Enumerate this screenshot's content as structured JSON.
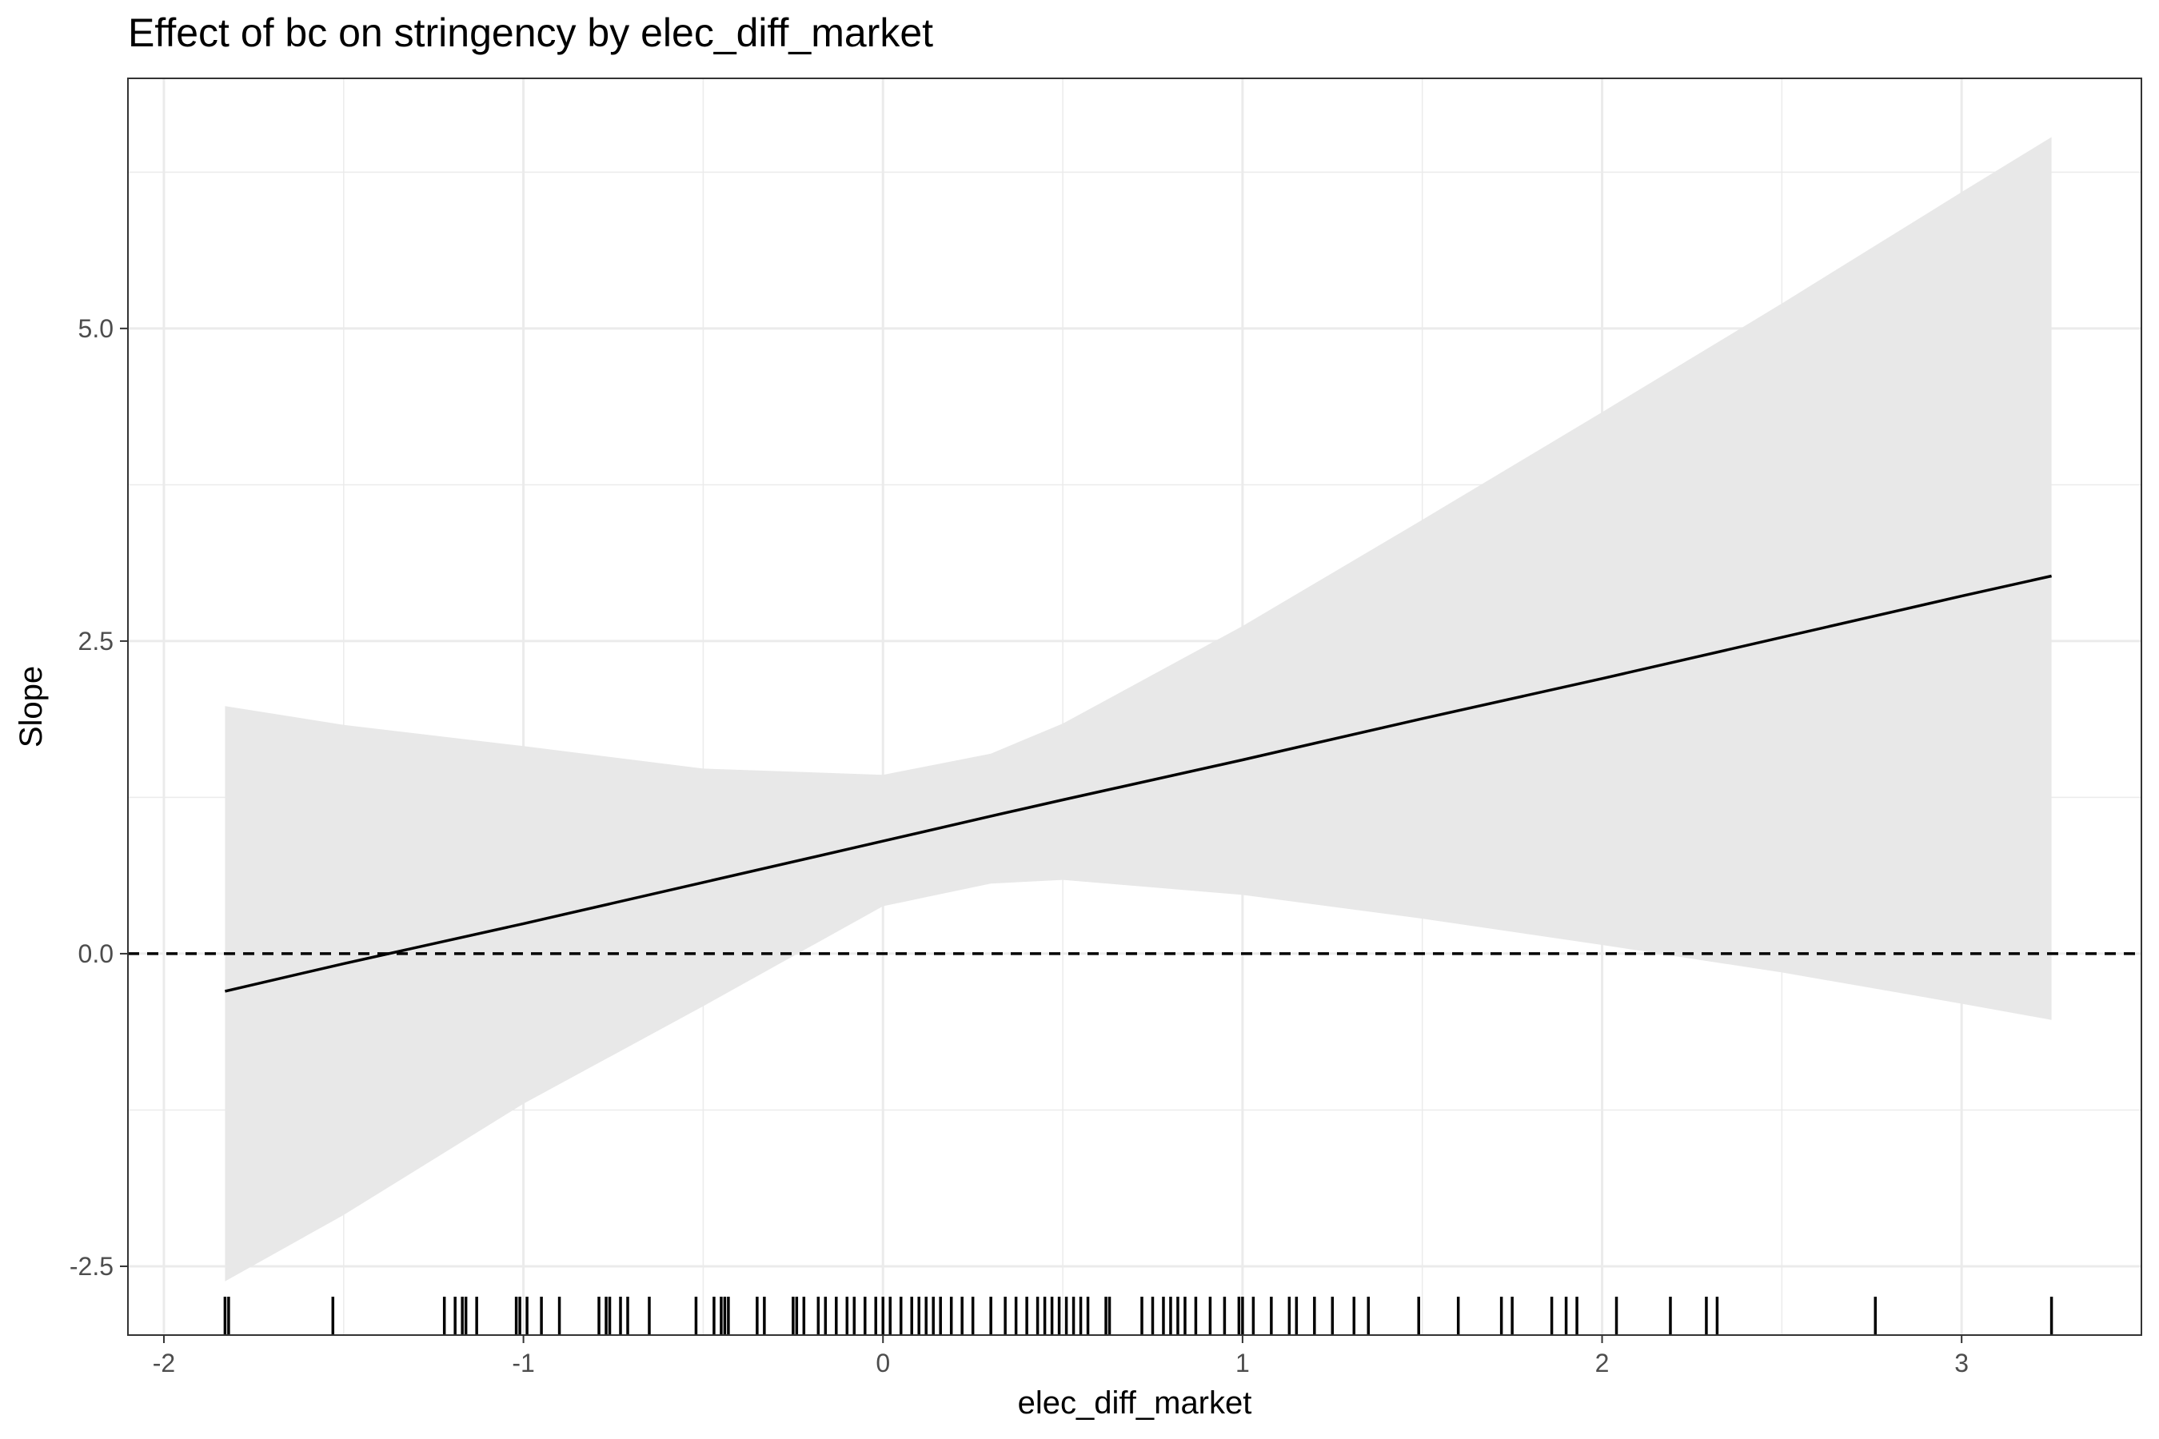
{
  "chart_data": {
    "type": "line",
    "title": "Effect of bc on stringency by elec_diff_market",
    "xlabel": "elec_diff_market",
    "ylabel": "Slope",
    "xlim": [
      -2.1,
      3.5
    ],
    "ylim": [
      -3.05,
      7.0
    ],
    "x_ticks": [
      -2,
      -1,
      0,
      1,
      2,
      3
    ],
    "x_tick_labels": [
      "-2",
      "-1",
      "0",
      "1",
      "2",
      "3"
    ],
    "y_ticks": [
      -2.5,
      0.0,
      2.5,
      5.0
    ],
    "y_tick_labels": [
      "-2.5",
      "0.0",
      "2.5",
      "5.0"
    ],
    "grid": true,
    "reference_line": {
      "y": 0,
      "style": "dashed",
      "color": "#000000"
    },
    "colors": {
      "line": "#000000",
      "band": "#e8e8e8",
      "grid": "#ebebeb",
      "border": "#333333"
    },
    "series": [
      {
        "x": [
          -1.83,
          -1.5,
          -1.0,
          -0.5,
          0.0,
          0.3,
          0.5,
          1.0,
          1.5,
          2.0,
          2.5,
          3.0,
          3.25
        ],
        "y": [
          -0.3,
          -0.08,
          0.24,
          0.57,
          0.9,
          1.1,
          1.23,
          1.55,
          1.88,
          2.2,
          2.53,
          2.86,
          3.02
        ],
        "lower": [
          -2.62,
          -2.09,
          -1.2,
          -0.42,
          0.38,
          0.56,
          0.59,
          0.47,
          0.28,
          0.07,
          -0.15,
          -0.4,
          -0.53
        ],
        "upper": [
          1.98,
          1.83,
          1.66,
          1.48,
          1.43,
          1.6,
          1.84,
          2.62,
          3.47,
          4.33,
          5.2,
          6.09,
          6.53
        ]
      }
    ],
    "rug_x": [
      -1.83,
      -1.82,
      -1.53,
      -1.22,
      -1.19,
      -1.17,
      -1.16,
      -1.13,
      -1.02,
      -1.01,
      -0.99,
      -0.95,
      -0.9,
      -0.79,
      -0.77,
      -0.76,
      -0.73,
      -0.71,
      -0.65,
      -0.52,
      -0.47,
      -0.45,
      -0.44,
      -0.43,
      -0.35,
      -0.33,
      -0.25,
      -0.24,
      -0.22,
      -0.18,
      -0.16,
      -0.13,
      -0.1,
      -0.08,
      -0.05,
      -0.02,
      0.0,
      0.02,
      0.05,
      0.08,
      0.1,
      0.12,
      0.14,
      0.16,
      0.19,
      0.22,
      0.25,
      0.3,
      0.34,
      0.37,
      0.4,
      0.43,
      0.45,
      0.47,
      0.49,
      0.51,
      0.53,
      0.55,
      0.57,
      0.62,
      0.63,
      0.72,
      0.75,
      0.78,
      0.8,
      0.82,
      0.84,
      0.87,
      0.91,
      0.95,
      0.99,
      1.0,
      1.03,
      1.08,
      1.13,
      1.15,
      1.2,
      1.25,
      1.31,
      1.35,
      1.49,
      1.6,
      1.72,
      1.75,
      1.86,
      1.9,
      1.93,
      2.04,
      2.19,
      2.29,
      2.32,
      2.76,
      3.25
    ]
  }
}
